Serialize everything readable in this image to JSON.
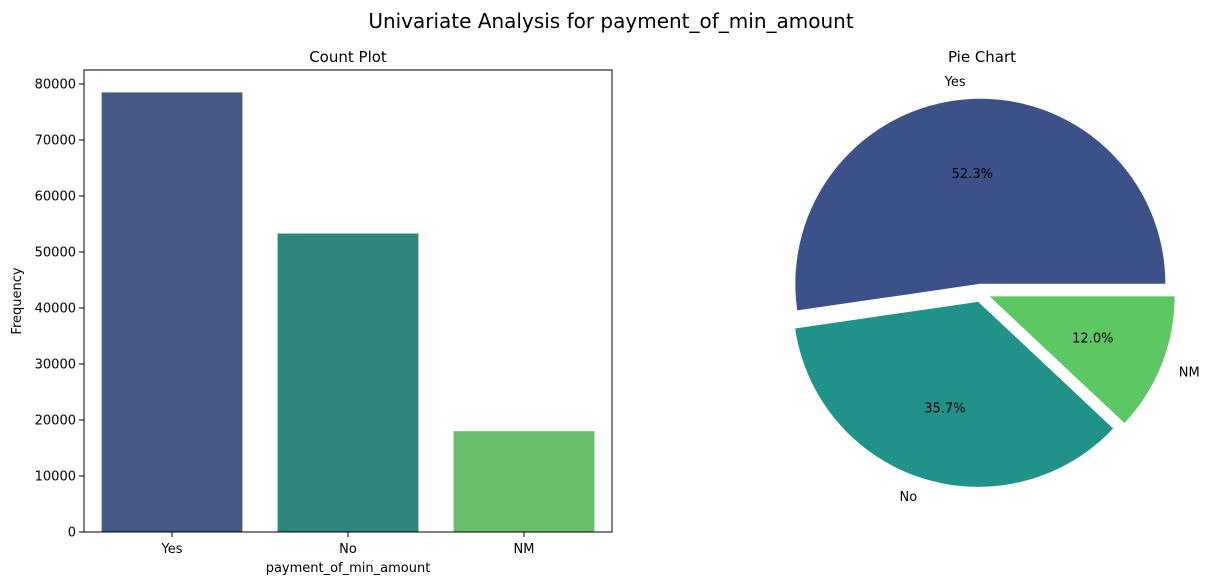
{
  "figure": {
    "title": "Univariate Analysis for payment_of_min_amount"
  },
  "chart_data": [
    {
      "type": "bar",
      "title": "Count Plot",
      "xlabel": "payment_of_min_amount",
      "ylabel": "Frequency",
      "categories": [
        "Yes",
        "No",
        "NM"
      ],
      "values": [
        78500,
        53300,
        18000
      ],
      "colors": [
        "#455a83",
        "#2e857e",
        "#6bbd6e"
      ],
      "ylim": [
        0,
        82500
      ],
      "yticks": [
        0,
        10000,
        20000,
        30000,
        40000,
        50000,
        60000,
        70000,
        80000
      ],
      "grid": false
    },
    {
      "type": "pie",
      "title": "Pie Chart",
      "labels": [
        "Yes",
        "No",
        "NM"
      ],
      "values": [
        52.3,
        35.7,
        12.0
      ],
      "pct_labels": [
        "52.3%",
        "35.7%",
        "12.0%"
      ],
      "colors": [
        "#3d5189",
        "#21928a",
        "#5dc863"
      ],
      "explode": [
        0.05,
        0.05,
        0.05
      ]
    }
  ]
}
